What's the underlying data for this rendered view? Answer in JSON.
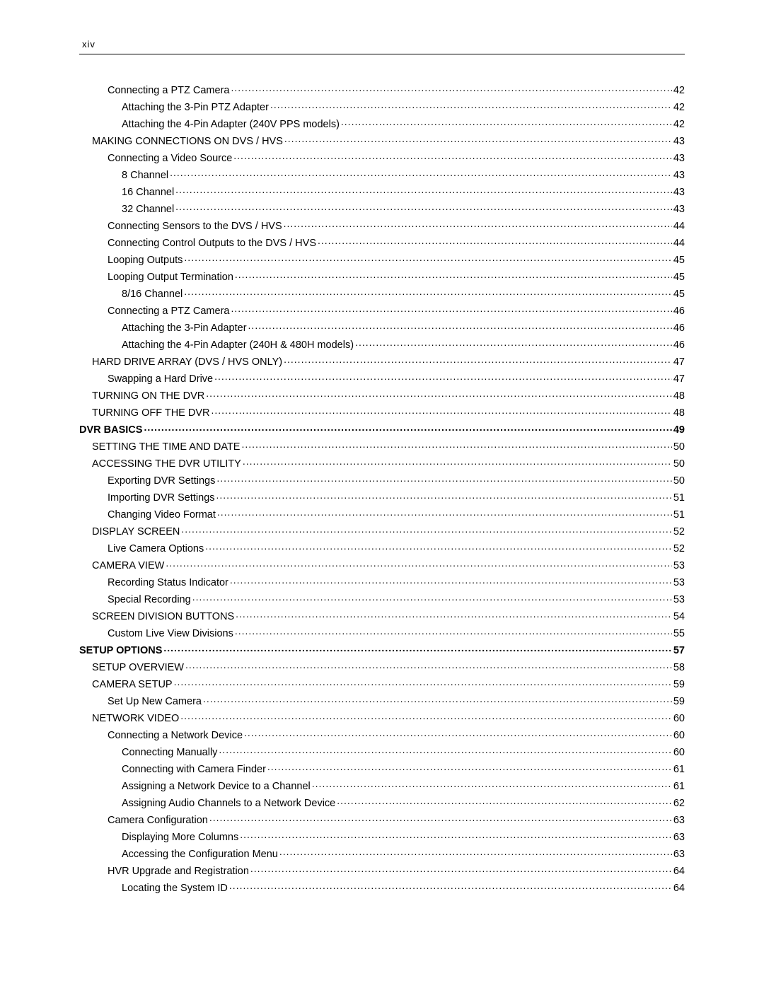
{
  "header": {
    "pageLabel": "xiv"
  },
  "toc": [
    {
      "label": "Connecting a PTZ Camera",
      "page": "42",
      "level": 2,
      "bold": false
    },
    {
      "label": "Attaching the 3-Pin PTZ Adapter",
      "page": "42",
      "level": 3,
      "bold": false
    },
    {
      "label": "Attaching the 4-Pin Adapter (240V PPS models)",
      "page": "42",
      "level": 3,
      "bold": false
    },
    {
      "label": "MAKING CONNECTIONS ON DVS / HVS",
      "page": "43",
      "level": 1,
      "bold": false
    },
    {
      "label": "Connecting a Video Source",
      "page": "43",
      "level": 2,
      "bold": false
    },
    {
      "label": "8 Channel",
      "page": "43",
      "level": 3,
      "bold": false
    },
    {
      "label": "16 Channel",
      "page": "43",
      "level": 3,
      "bold": false
    },
    {
      "label": "32 Channel",
      "page": "43",
      "level": 3,
      "bold": false
    },
    {
      "label": "Connecting Sensors to the DVS / HVS",
      "page": "44",
      "level": 2,
      "bold": false
    },
    {
      "label": "Connecting Control Outputs to the DVS / HVS",
      "page": "44",
      "level": 2,
      "bold": false
    },
    {
      "label": "Looping Outputs",
      "page": "45",
      "level": 2,
      "bold": false
    },
    {
      "label": "Looping Output Termination",
      "page": "45",
      "level": 2,
      "bold": false
    },
    {
      "label": "8/16 Channel",
      "page": "45",
      "level": 3,
      "bold": false
    },
    {
      "label": "Connecting a PTZ Camera",
      "page": "46",
      "level": 2,
      "bold": false
    },
    {
      "label": "Attaching the 3-Pin Adapter",
      "page": "46",
      "level": 3,
      "bold": false
    },
    {
      "label": "Attaching the 4-Pin Adapter (240H & 480H models)",
      "page": "46",
      "level": 3,
      "bold": false
    },
    {
      "label": "HARD DRIVE ARRAY (DVS / HVS ONLY)",
      "page": "47",
      "level": 1,
      "bold": false
    },
    {
      "label": "Swapping a Hard Drive",
      "page": "47",
      "level": 2,
      "bold": false
    },
    {
      "label": "TURNING ON THE DVR",
      "page": "48",
      "level": 1,
      "bold": false
    },
    {
      "label": "TURNING OFF THE DVR",
      "page": "48",
      "level": 1,
      "bold": false
    },
    {
      "label": "DVR BASICS",
      "page": "49",
      "level": 0,
      "bold": true
    },
    {
      "label": "SETTING THE TIME AND DATE",
      "page": "50",
      "level": 1,
      "bold": false
    },
    {
      "label": "ACCESSING THE DVR UTILITY",
      "page": "50",
      "level": 1,
      "bold": false
    },
    {
      "label": "Exporting DVR Settings",
      "page": "50",
      "level": 2,
      "bold": false
    },
    {
      "label": "Importing DVR Settings",
      "page": "51",
      "level": 2,
      "bold": false
    },
    {
      "label": "Changing Video Format",
      "page": "51",
      "level": 2,
      "bold": false
    },
    {
      "label": "DISPLAY SCREEN",
      "page": "52",
      "level": 1,
      "bold": false
    },
    {
      "label": "Live Camera Options",
      "page": "52",
      "level": 2,
      "bold": false
    },
    {
      "label": "CAMERA VIEW",
      "page": "53",
      "level": 1,
      "bold": false
    },
    {
      "label": "Recording Status Indicator",
      "page": "53",
      "level": 2,
      "bold": false
    },
    {
      "label": "Special Recording",
      "page": "53",
      "level": 2,
      "bold": false
    },
    {
      "label": "SCREEN DIVISION BUTTONS",
      "page": "54",
      "level": 1,
      "bold": false
    },
    {
      "label": "Custom Live View Divisions",
      "page": "55",
      "level": 2,
      "bold": false
    },
    {
      "label": "SETUP OPTIONS",
      "page": "57",
      "level": 0,
      "bold": true
    },
    {
      "label": "SETUP OVERVIEW",
      "page": "58",
      "level": 1,
      "bold": false
    },
    {
      "label": "CAMERA SETUP",
      "page": "59",
      "level": 1,
      "bold": false
    },
    {
      "label": "Set Up New Camera",
      "page": "59",
      "level": 2,
      "bold": false
    },
    {
      "label": "NETWORK VIDEO",
      "page": "60",
      "level": 1,
      "bold": false
    },
    {
      "label": "Connecting a Network Device",
      "page": "60",
      "level": 2,
      "bold": false
    },
    {
      "label": "Connecting Manually",
      "page": "60",
      "level": 3,
      "bold": false
    },
    {
      "label": "Connecting with Camera Finder",
      "page": "61",
      "level": 3,
      "bold": false
    },
    {
      "label": "Assigning a Network Device to a Channel",
      "page": "61",
      "level": 3,
      "bold": false
    },
    {
      "label": "Assigning Audio Channels to a Network Device",
      "page": "62",
      "level": 3,
      "bold": false
    },
    {
      "label": "Camera Configuration",
      "page": "63",
      "level": 2,
      "bold": false
    },
    {
      "label": "Displaying More Columns",
      "page": "63",
      "level": 3,
      "bold": false
    },
    {
      "label": "Accessing the Configuration Menu",
      "page": "63",
      "level": 3,
      "bold": false
    },
    {
      "label": "HVR Upgrade and Registration",
      "page": "64",
      "level": 2,
      "bold": false
    },
    {
      "label": "Locating the System ID",
      "page": "64",
      "level": 3,
      "bold": false
    }
  ]
}
